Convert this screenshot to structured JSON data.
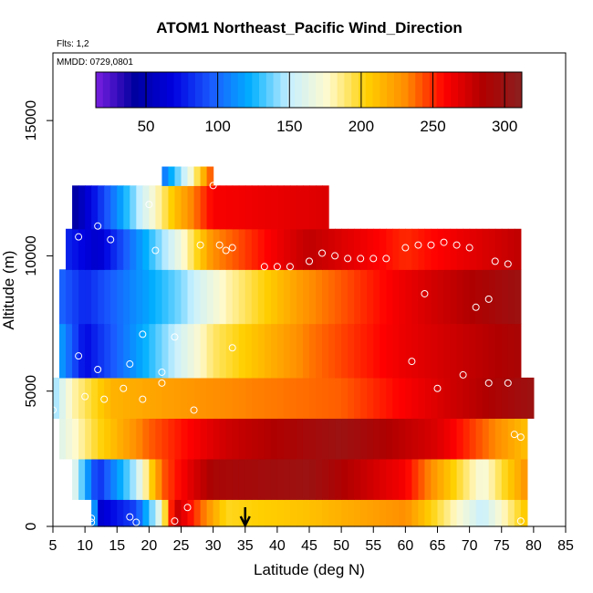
{
  "chart_data": {
    "type": "heatmap",
    "title": "ATOM1 Northeast_Pacific Wind_Direction",
    "flights_label": "Flts: 1,2",
    "dates_label": "MMDD: 0729,0801",
    "xlabel": "Latitude (deg N)",
    "ylabel": "Altitude (m)",
    "xlim": [
      5,
      85
    ],
    "ylim": [
      0,
      17500
    ],
    "x_ticks": [
      "5",
      "10",
      "15",
      "20",
      "25",
      "30",
      "35",
      "40",
      "45",
      "50",
      "55",
      "60",
      "65",
      "70",
      "75",
      "80",
      "85"
    ],
    "y_ticks": [
      "0",
      "5000",
      "10000",
      "15000"
    ],
    "colorbar": {
      "range": [
        15,
        312
      ],
      "ticks": [
        "50",
        "100",
        "150",
        "200",
        "250",
        "300"
      ],
      "colors": [
        "#7a1fe0",
        "#0000a0",
        "#0000e0",
        "#1a5cff",
        "#00b0ff",
        "#c8f0ff",
        "#fffacd",
        "#ffd000",
        "#ff8c00",
        "#ff0000",
        "#b00000",
        "#8b2020"
      ]
    },
    "marker": {
      "x": 35,
      "label": "arrow"
    },
    "field_rows": [
      {
        "alt": 0,
        "segments": [
          [
            11,
            165
          ],
          [
            12,
            60
          ],
          [
            18,
            90
          ],
          [
            22,
            170
          ],
          [
            24,
            280
          ],
          [
            32,
            200
          ],
          [
            45,
            210
          ],
          [
            60,
            230
          ],
          [
            72,
            150
          ],
          [
            79,
            210
          ]
        ]
      },
      {
        "alt": 1000,
        "segments": [
          [
            8,
            170
          ],
          [
            12,
            80
          ],
          [
            18,
            150
          ],
          [
            22,
            240
          ],
          [
            30,
            290
          ],
          [
            45,
            300
          ],
          [
            60,
            260
          ],
          [
            72,
            170
          ],
          [
            79,
            230
          ]
        ]
      },
      {
        "alt": 2500,
        "segments": [
          [
            6,
            160
          ],
          [
            12,
            200
          ],
          [
            20,
            240
          ],
          [
            32,
            275
          ],
          [
            50,
            300
          ],
          [
            65,
            270
          ],
          [
            79,
            210
          ]
        ]
      },
      {
        "alt": 4000,
        "segments": [
          [
            5,
            140
          ],
          [
            8,
            180
          ],
          [
            14,
            215
          ],
          [
            30,
            230
          ],
          [
            50,
            240
          ],
          [
            65,
            270
          ],
          [
            80,
            300
          ]
        ]
      },
      {
        "alt": 5500,
        "segments": [
          [
            6,
            120
          ],
          [
            10,
            70
          ],
          [
            24,
            150
          ],
          [
            30,
            190
          ],
          [
            45,
            235
          ],
          [
            60,
            265
          ],
          [
            78,
            290
          ]
        ]
      },
      {
        "alt": 7500,
        "segments": [
          [
            6,
            100
          ],
          [
            10,
            80
          ],
          [
            25,
            140
          ],
          [
            32,
            180
          ],
          [
            45,
            230
          ],
          [
            60,
            265
          ],
          [
            78,
            300
          ]
        ]
      },
      {
        "alt": 9500,
        "segments": [
          [
            7,
            80
          ],
          [
            12,
            60
          ],
          [
            24,
            160
          ],
          [
            30,
            230
          ],
          [
            45,
            280
          ],
          [
            60,
            250
          ],
          [
            78,
            280
          ]
        ]
      },
      {
        "alt": 11000,
        "segments": [
          [
            8,
            40
          ],
          [
            14,
            100
          ],
          [
            24,
            210
          ],
          [
            30,
            260
          ],
          [
            48,
            270
          ]
        ]
      },
      {
        "alt": 12600,
        "segments": [
          [
            22,
            100
          ],
          [
            26,
            160
          ],
          [
            30,
            250
          ]
        ]
      }
    ],
    "obs_points": [
      [
        11,
        300
      ],
      [
        11,
        150
      ],
      [
        17,
        350
      ],
      [
        18,
        150
      ],
      [
        26,
        700
      ],
      [
        24,
        200
      ],
      [
        22,
        5300
      ],
      [
        22,
        5700
      ],
      [
        17,
        6000
      ],
      [
        12,
        5800
      ],
      [
        13,
        4700
      ],
      [
        10,
        4800
      ],
      [
        16,
        5100
      ],
      [
        19,
        4700
      ],
      [
        5,
        4300
      ],
      [
        27,
        4300
      ],
      [
        5,
        6100
      ],
      [
        9,
        6300
      ],
      [
        19,
        7100
      ],
      [
        24,
        7000
      ],
      [
        33,
        6600
      ],
      [
        9,
        10700
      ],
      [
        14,
        10600
      ],
      [
        12,
        11100
      ],
      [
        20,
        11900
      ],
      [
        21,
        10200
      ],
      [
        30,
        12600
      ],
      [
        28,
        10400
      ],
      [
        31,
        10400
      ],
      [
        32,
        10200
      ],
      [
        33,
        10300
      ],
      [
        38,
        9600
      ],
      [
        40,
        9600
      ],
      [
        42,
        9600
      ],
      [
        45,
        9800
      ],
      [
        47,
        10100
      ],
      [
        49,
        10000
      ],
      [
        51,
        9900
      ],
      [
        53,
        9900
      ],
      [
        55,
        9900
      ],
      [
        57,
        9900
      ],
      [
        60,
        10300
      ],
      [
        62,
        10400
      ],
      [
        64,
        10400
      ],
      [
        66,
        10500
      ],
      [
        68,
        10400
      ],
      [
        70,
        10300
      ],
      [
        74,
        9800
      ],
      [
        76,
        9700
      ],
      [
        71,
        8100
      ],
      [
        73,
        8400
      ],
      [
        63,
        8600
      ],
      [
        61,
        6100
      ],
      [
        65,
        5100
      ],
      [
        69,
        5600
      ],
      [
        73,
        5300
      ],
      [
        76,
        5300
      ],
      [
        78,
        3300
      ],
      [
        77,
        3400
      ],
      [
        78,
        200
      ]
    ]
  }
}
